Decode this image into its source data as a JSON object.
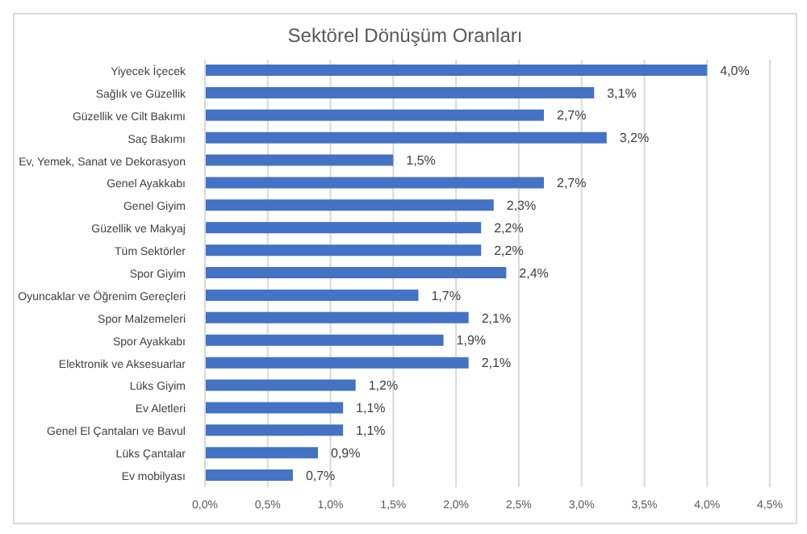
{
  "chart_data": {
    "type": "bar",
    "orientation": "horizontal",
    "title": "Sektörel Dönüşüm Oranları",
    "categories": [
      "Yiyecek İçecek",
      "Sağlık ve Güzellik",
      "Güzellik ve Cilt Bakımı",
      "Saç Bakımı",
      "Ev, Yemek, Sanat ve Dekorasyon",
      "Genel Ayakkabı",
      "Genel Giyim",
      "Güzellik ve Makyaj",
      "Tüm Sektörler",
      "Spor Giyim",
      "Oyuncaklar ve Öğrenim Gereçleri",
      "Spor Malzemeleri",
      "Spor Ayakkabı",
      "Elektronik ve Aksesuarlar",
      "Lüks Giyim",
      "Ev Aletleri",
      "Genel El Çantaları ve Bavul",
      "Lüks Çantalar",
      "Ev mobilyası"
    ],
    "values": [
      4.0,
      3.1,
      2.7,
      3.2,
      1.5,
      2.7,
      2.3,
      2.2,
      2.2,
      2.4,
      1.7,
      2.1,
      1.9,
      2.1,
      1.2,
      1.1,
      1.1,
      0.9,
      0.7
    ],
    "value_labels": [
      "4,0%",
      "3,1%",
      "2,7%",
      "3,2%",
      "1,5%",
      "2,7%",
      "2,3%",
      "2,2%",
      "2,2%",
      "2,4%",
      "1,7%",
      "2,1%",
      "1,9%",
      "2,1%",
      "1,2%",
      "1,1%",
      "1,1%",
      "0,9%",
      "0,7%"
    ],
    "color": "#4472c4",
    "xlim": [
      0,
      4.5
    ],
    "xticks": [
      {
        "value": 0,
        "label": "0,0%"
      },
      {
        "value": 0.5,
        "label": "0,5%"
      },
      {
        "value": 1,
        "label": "1,0%"
      },
      {
        "value": 1.5,
        "label": "1,5%"
      },
      {
        "value": 2,
        "label": "2,0%"
      },
      {
        "value": 2.5,
        "label": "2,5%"
      },
      {
        "value": 3,
        "label": "3,0%"
      },
      {
        "value": 3.5,
        "label": "3,5%"
      },
      {
        "value": 4,
        "label": "4,0%"
      },
      {
        "value": 4.5,
        "label": "4,5%"
      }
    ],
    "grid": "x"
  }
}
